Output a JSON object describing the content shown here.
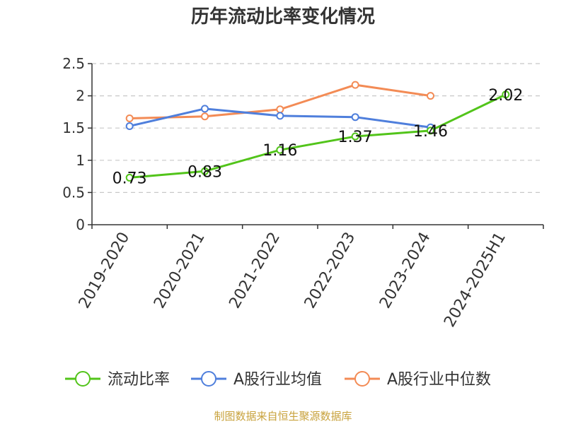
{
  "chart_data": {
    "type": "line",
    "title": "历年流动比率变化情况",
    "categories": [
      "2019-2020",
      "2020-2021",
      "2021-2022",
      "2022-2023",
      "2023-2024",
      "2024-2025H1"
    ],
    "ylim": [
      0,
      2.5
    ],
    "yticks": [
      0,
      0.5,
      1,
      1.5,
      2,
      2.5
    ],
    "grid": true,
    "legend_position": "bottom",
    "series": [
      {
        "name": "流动比率",
        "color": "#52c41a",
        "values": [
          0.73,
          0.83,
          1.16,
          1.37,
          1.46,
          2.02
        ],
        "data_labels": [
          "0.73",
          "0.83",
          "1.16",
          "1.37",
          "1.46",
          "2.02"
        ]
      },
      {
        "name": "A股行业均值",
        "color": "#4f7fdc",
        "values": [
          1.53,
          1.8,
          1.69,
          1.67,
          1.51,
          null
        ]
      },
      {
        "name": "A股行业中位数",
        "color": "#f38b55",
        "values": [
          1.65,
          1.68,
          1.79,
          2.17,
          2.0,
          null
        ]
      }
    ],
    "source": "制图数据来自恒生聚源数据库"
  }
}
